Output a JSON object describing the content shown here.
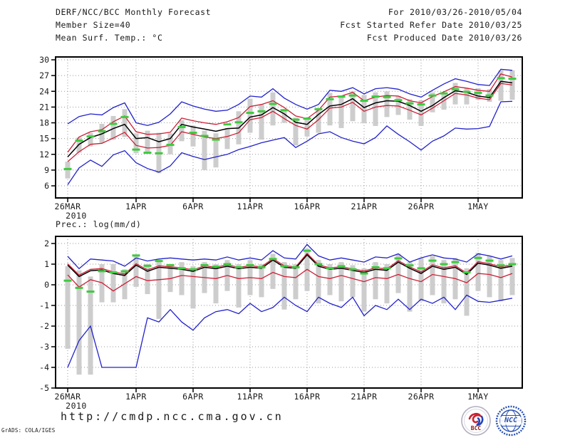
{
  "header": {
    "title": "DERF/NCC/BCC Monthly Forecast",
    "member_size": "Member Size=40",
    "for_range": "For 2010/03/26-2010/05/04",
    "refer_date": "Fcst Started Refer Date 2010/03/25",
    "produced_date": "Fcst Produced Date 2010/03/26"
  },
  "footer": {
    "url": "http://cmdp.ncc.cma.gov.cn",
    "credit": "GrADS: COLA/IGES",
    "logos": [
      {
        "label": "BCC"
      },
      {
        "label": "NCC"
      }
    ]
  },
  "colors": {
    "extreme_line": "#2222cc",
    "quartile_line": "#cc2036",
    "mean_line": "#000000",
    "median_dash": "#3fca3f",
    "spread_bar": "#cdcdcd",
    "grid": "#999999"
  },
  "chart_data": [
    {
      "type": "line",
      "title": "Mean Surf. Temp.: °C",
      "x_tick_days": [
        0,
        6,
        11,
        16,
        21,
        26,
        31,
        36
      ],
      "x_tick_labels": [
        "26MAR",
        "1APR",
        "6APR",
        "11APR",
        "16APR",
        "21APR",
        "26APR",
        "1MAY"
      ],
      "x_sub_label": "2010",
      "n_days": 40,
      "y_ticks": [
        6,
        9,
        12,
        15,
        18,
        21,
        24,
        27,
        30
      ],
      "ylim": [
        3.7,
        30.6
      ],
      "grid": "dotted",
      "series": [
        {
          "name": "ensemble-min",
          "color": "#2222cc",
          "values": [
            6.2,
            9.4,
            10.9,
            9.7,
            11.9,
            12.7,
            10.4,
            9.3,
            8.6,
            9.8,
            12.3,
            11.6,
            11.0,
            11.5,
            12.0,
            12.9,
            13.5,
            14.2,
            14.7,
            15.2,
            13.3,
            14.5,
            15.9,
            16.3,
            15.2,
            14.5,
            14.0,
            15.2,
            17.4,
            15.8,
            14.4,
            12.8,
            14.5,
            15.5,
            17.0,
            16.8,
            16.9,
            17.3,
            22.0,
            22.1
          ]
        },
        {
          "name": "ensemble-max",
          "color": "#2222cc",
          "values": [
            17.8,
            19.2,
            19.7,
            19.5,
            20.9,
            21.8,
            18.0,
            17.5,
            18.1,
            19.7,
            22.0,
            21.2,
            20.6,
            20.2,
            20.4,
            21.5,
            23.1,
            22.9,
            24.5,
            22.7,
            21.5,
            20.6,
            21.5,
            24.2,
            24.0,
            24.7,
            23.5,
            24.5,
            24.7,
            24.4,
            23.5,
            22.9,
            24.2,
            25.4,
            26.4,
            25.9,
            25.3,
            25.1,
            28.2,
            28.0
          ]
        },
        {
          "name": "lower-quartile",
          "color": "#cc2036",
          "values": [
            10.6,
            12.5,
            13.9,
            14.1,
            15.1,
            16.2,
            13.7,
            13.2,
            13.3,
            13.7,
            16.3,
            15.8,
            15.3,
            15.0,
            15.4,
            16.1,
            18.6,
            19.0,
            20.2,
            18.8,
            17.5,
            16.8,
            18.6,
            20.8,
            21.0,
            21.9,
            20.2,
            21.0,
            21.3,
            21.2,
            20.4,
            19.5,
            20.8,
            22.2,
            23.6,
            23.3,
            22.7,
            22.4,
            25.5,
            25.2
          ]
        },
        {
          "name": "upper-quartile",
          "color": "#cc2036",
          "values": [
            12.4,
            15.3,
            16.3,
            16.7,
            18.2,
            19.3,
            16.3,
            15.8,
            15.9,
            16.2,
            18.9,
            18.4,
            18.0,
            17.7,
            18.2,
            19.0,
            21.1,
            21.5,
            22.2,
            20.9,
            19.3,
            18.8,
            20.4,
            22.9,
            23.1,
            23.8,
            22.2,
            22.9,
            23.2,
            23.1,
            22.2,
            21.8,
            23.0,
            23.9,
            24.9,
            24.6,
            24.2,
            24.0,
            27.3,
            26.7
          ]
        },
        {
          "name": "ensemble-mean",
          "color": "#000000",
          "values": [
            11.5,
            13.9,
            15.2,
            15.9,
            16.9,
            17.7,
            15.0,
            15.2,
            14.4,
            15.0,
            17.7,
            17.2,
            16.8,
            16.4,
            16.9,
            17.0,
            19.1,
            19.5,
            20.9,
            19.7,
            18.1,
            17.7,
            19.6,
            21.2,
            21.5,
            22.6,
            20.9,
            21.8,
            22.2,
            22.1,
            21.3,
            20.2,
            21.3,
            22.8,
            24.1,
            23.8,
            23.1,
            22.8,
            25.9,
            25.6
          ]
        }
      ],
      "median_dashes": {
        "name": "ensemble-median",
        "color": "#3fca3f",
        "values": [
          9.2,
          14.6,
          15.4,
          16.4,
          17.8,
          19.1,
          12.9,
          12.3,
          12.2,
          13.8,
          17.2,
          16.1,
          15.5,
          14.8,
          17.7,
          18.1,
          19.9,
          20.2,
          21.6,
          20.4,
          18.6,
          18.8,
          20.6,
          22.5,
          23.0,
          23.2,
          22.2,
          23.0,
          22.9,
          22.3,
          21.7,
          21.5,
          23.2,
          23.6,
          24.4,
          23.9,
          23.7,
          23.2,
          26.5,
          26.4
        ]
      },
      "spread_bars": {
        "name": "ensemble-spread",
        "color": "#cdcdcd",
        "lo": [
          7.4,
          12.3,
          13.5,
          14.2,
          14.8,
          15.3,
          12.2,
          12.5,
          8.4,
          12.0,
          14.5,
          13.5,
          9.0,
          9.5,
          13.0,
          13.9,
          16.1,
          14.8,
          17.5,
          18.0,
          13.7,
          15.4,
          16.1,
          17.5,
          17.0,
          18.3,
          17.9,
          17.4,
          19.1,
          19.5,
          18.6,
          17.4,
          20.0,
          20.5,
          21.5,
          21.5,
          22.4,
          22.0,
          22.2,
          22.4
        ],
        "hi": [
          10.6,
          15.2,
          16.1,
          17.8,
          19.3,
          20.6,
          16.0,
          16.5,
          16.1,
          16.0,
          18.5,
          17.5,
          16.5,
          16.0,
          17.0,
          20.2,
          22.6,
          21.5,
          23.8,
          20.6,
          19.0,
          18.8,
          20.6,
          23.7,
          23.0,
          24.0,
          23.3,
          23.8,
          24.0,
          23.1,
          22.5,
          22.3,
          23.8,
          23.5,
          25.6,
          24.6,
          24.6,
          24.4,
          28.0,
          28.0
        ]
      }
    },
    {
      "type": "line",
      "title": "Prec.: log(mm/d)",
      "x_tick_days": [
        0,
        6,
        11,
        16,
        21,
        26,
        31,
        36
      ],
      "x_tick_labels": [
        "26MAR",
        "1APR",
        "6APR",
        "11APR",
        "16APR",
        "21APR",
        "26APR",
        "1MAY"
      ],
      "x_sub_label": "2010",
      "n_days": 40,
      "y_ticks": [
        2,
        1,
        0,
        -1,
        -2,
        -3,
        -4,
        -5
      ],
      "ylim": [
        -5,
        2.34
      ],
      "grid": "dotted",
      "series": [
        {
          "name": "ensemble-min",
          "color": "#2222cc",
          "values": [
            -4.0,
            -2.7,
            -2.0,
            -4.0,
            -4.0,
            -4.0,
            -4.0,
            -1.6,
            -1.8,
            -1.2,
            -1.8,
            -2.2,
            -1.6,
            -1.3,
            -1.2,
            -1.4,
            -0.9,
            -1.3,
            -1.1,
            -0.6,
            -1.0,
            -1.3,
            -0.6,
            -0.9,
            -1.1,
            -0.6,
            -1.5,
            -1.0,
            -1.2,
            -0.7,
            -1.2,
            -0.7,
            -0.9,
            -0.6,
            -1.2,
            -0.5,
            -0.8,
            -0.85,
            -0.75,
            -0.65
          ]
        },
        {
          "name": "ensemble-max",
          "color": "#2222cc",
          "values": [
            1.38,
            0.78,
            1.25,
            1.2,
            1.15,
            0.9,
            1.3,
            1.15,
            1.25,
            1.3,
            1.25,
            1.2,
            1.25,
            1.2,
            1.35,
            1.2,
            1.3,
            1.2,
            1.65,
            1.3,
            1.25,
            1.95,
            1.4,
            1.2,
            1.3,
            1.2,
            1.1,
            1.35,
            1.3,
            1.5,
            1.1,
            1.3,
            1.45,
            1.3,
            1.25,
            1.1,
            1.5,
            1.4,
            1.25,
            1.4
          ]
        },
        {
          "name": "lower-quartile",
          "color": "#cc2036",
          "values": [
            0.48,
            -0.11,
            0.25,
            0.1,
            -0.3,
            0.05,
            0.4,
            0.2,
            0.25,
            0.3,
            0.45,
            0.4,
            0.35,
            0.3,
            0.45,
            0.3,
            0.35,
            0.3,
            0.6,
            0.4,
            0.35,
            0.75,
            0.4,
            0.3,
            0.45,
            0.3,
            0.15,
            0.35,
            0.3,
            0.5,
            0.3,
            0.15,
            0.5,
            0.4,
            0.3,
            0.1,
            0.55,
            0.5,
            0.35,
            0.55
          ]
        },
        {
          "name": "upper-quartile",
          "color": "#cc2036",
          "values": [
            1.02,
            0.47,
            0.75,
            0.79,
            0.62,
            0.52,
            1.02,
            0.72,
            0.92,
            0.87,
            0.82,
            0.72,
            0.92,
            0.85,
            0.97,
            0.85,
            0.92,
            0.87,
            1.27,
            0.92,
            0.87,
            1.52,
            0.97,
            0.82,
            0.87,
            0.77,
            0.67,
            0.82,
            0.77,
            1.17,
            0.87,
            0.62,
            0.97,
            0.82,
            0.92,
            0.57,
            1.12,
            1.02,
            0.87,
            0.97
          ]
        },
        {
          "name": "ensemble-mean",
          "color": "#000000",
          "values": [
            0.95,
            0.4,
            0.68,
            0.72,
            0.55,
            0.45,
            0.95,
            0.65,
            0.85,
            0.8,
            0.75,
            0.65,
            0.85,
            0.78,
            0.9,
            0.78,
            0.85,
            0.8,
            1.2,
            0.85,
            0.8,
            1.45,
            0.9,
            0.75,
            0.8,
            0.7,
            0.6,
            0.75,
            0.7,
            1.1,
            0.8,
            0.55,
            0.9,
            0.75,
            0.85,
            0.5,
            1.05,
            0.95,
            0.8,
            0.9
          ]
        }
      ],
      "median_dashes": {
        "name": "ensemble-median",
        "color": "#3fca3f",
        "values": [
          0.2,
          -0.15,
          -0.33,
          0.66,
          0.6,
          0.65,
          1.42,
          0.92,
          1.15,
          0.95,
          0.8,
          0.75,
          0.95,
          0.88,
          1.0,
          0.85,
          0.95,
          0.85,
          1.25,
          0.9,
          0.85,
          1.65,
          1.0,
          0.8,
          0.9,
          0.75,
          0.55,
          0.85,
          0.8,
          1.28,
          0.94,
          0.8,
          1.17,
          1.0,
          1.1,
          0.6,
          1.3,
          1.17,
          0.94,
          1.0
        ]
      },
      "spread_bars": {
        "name": "ensemble-spread",
        "color": "#cdcdcd",
        "lo": [
          -3.1,
          -4.35,
          -4.35,
          -0.85,
          -0.85,
          -0.7,
          -0.1,
          -0.45,
          -1.65,
          -0.35,
          -0.5,
          -1.15,
          -0.4,
          -0.9,
          -0.3,
          -1.1,
          -0.5,
          -0.6,
          -0.2,
          -1.2,
          -0.7,
          -0.3,
          -0.9,
          -0.5,
          -0.8,
          -0.6,
          -1.3,
          -0.7,
          -0.9,
          -0.4,
          -1.3,
          -0.8,
          -0.5,
          -0.9,
          -0.7,
          -1.5,
          -0.3,
          -0.6,
          -0.8,
          -0.5
        ],
        "hi": [
          0.9,
          0.7,
          0.4,
          1.0,
          1.0,
          0.75,
          1.4,
          1.0,
          1.2,
          0.95,
          1.1,
          0.9,
          1.1,
          1.0,
          1.2,
          1.0,
          1.2,
          1.0,
          1.5,
          1.1,
          1.0,
          1.75,
          1.2,
          1.0,
          1.1,
          0.95,
          0.8,
          1.1,
          1.0,
          1.5,
          1.1,
          1.3,
          1.4,
          1.2,
          1.3,
          0.8,
          1.55,
          1.4,
          1.2,
          1.3
        ]
      }
    }
  ]
}
